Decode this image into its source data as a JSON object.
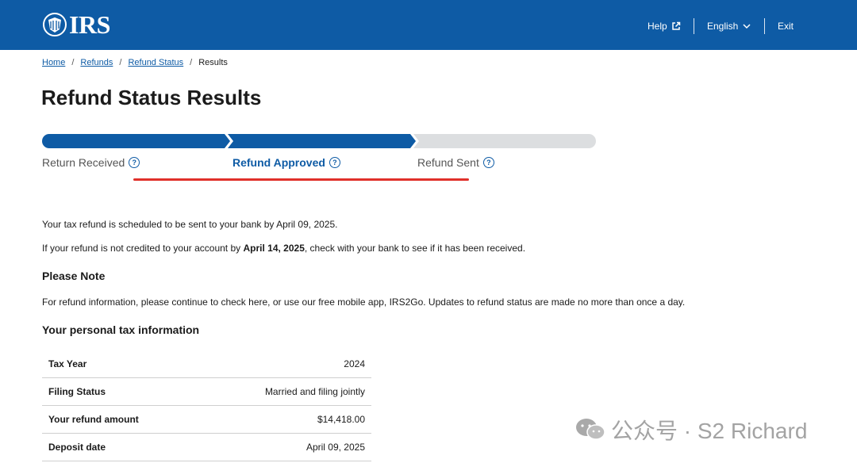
{
  "header": {
    "logo_text": "IRS",
    "help_label": "Help",
    "language_label": "English",
    "exit_label": "Exit",
    "background_color": "#0e5ba5"
  },
  "breadcrumb": [
    "Home",
    "Refunds",
    "Refund Status",
    "Results"
  ],
  "page_title": "Refund Status Results",
  "progress": {
    "steps": [
      "Return Received",
      "Refund Approved",
      "Refund Sent"
    ],
    "current_step": 2,
    "completed_color": "#0e5ba5",
    "pending_color": "#dcdee0",
    "highlight_color": "#e0302a",
    "help_icon": "question-circle-icon"
  },
  "messages": {
    "scheduled": "Your tax refund is scheduled to be sent to your bank by April 09, 2025.",
    "credit_prefix": "If your refund is not credited to your account by ",
    "credit_date": "April 14, 2025",
    "credit_suffix": ", check with your bank to see if it has been received."
  },
  "note": {
    "heading": "Please Note",
    "text": "For refund information, please continue to check here, or use our free mobile app, IRS2Go. Updates to refund status are made no more than once a day."
  },
  "personal_info": {
    "heading": "Your personal tax information",
    "rows": [
      {
        "label": "Tax Year",
        "value": "2024"
      },
      {
        "label": "Filing Status",
        "value": "Married and filing jointly"
      },
      {
        "label": "Your refund amount",
        "value": "$14,418.00"
      },
      {
        "label": "Deposit date",
        "value": "April 09, 2025"
      }
    ]
  },
  "watermark": {
    "text": "公众号 · S2 Richard",
    "icon": "wechat-icon"
  }
}
